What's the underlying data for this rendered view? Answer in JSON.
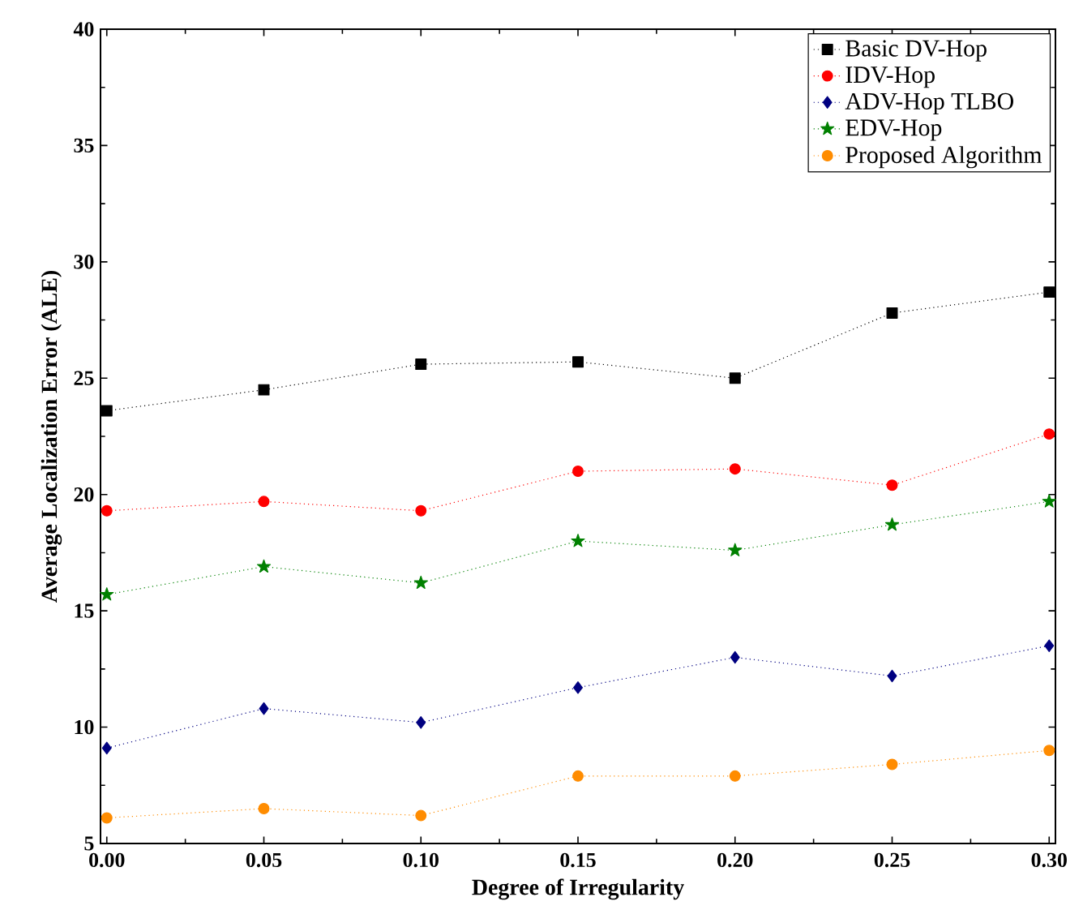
{
  "chart_data": {
    "type": "line",
    "xlabel": "Degree of Irregularity",
    "ylabel": "Average Localization Error (ALE)",
    "x": [
      0,
      0.05,
      0.1,
      0.15,
      0.2,
      0.25,
      0.3
    ],
    "xlim": [
      -0.002,
      0.302
    ],
    "ylim": [
      5,
      40
    ],
    "xticks": [
      {
        "value": 0,
        "label": "0.00"
      },
      0.05,
      {
        "value": 0.1,
        "label": "0.10"
      },
      0.15,
      {
        "value": 0.2,
        "label": "0.20"
      },
      0.25,
      {
        "value": 0.3,
        "label": "0.30"
      }
    ],
    "yticks": [
      5,
      10,
      15,
      20,
      25,
      30,
      35,
      40
    ],
    "legend": "top right",
    "grid": false,
    "line_style": "dotted",
    "series": [
      {
        "name": "Basic DV-Hop",
        "color": "#000000",
        "marker": "square",
        "values": [
          23.6,
          24.5,
          25.6,
          25.7,
          25.0,
          27.8,
          28.7
        ]
      },
      {
        "name": "IDV-Hop",
        "color": "#ff0000",
        "marker": "circle",
        "values": [
          19.3,
          19.7,
          19.3,
          21.0,
          21.1,
          20.4,
          22.6
        ]
      },
      {
        "name": "ADV-Hop TLBO",
        "color": "#000080",
        "marker": "diamond",
        "values": [
          9.1,
          10.8,
          10.2,
          11.7,
          13.0,
          12.2,
          13.5
        ]
      },
      {
        "name": "EDV-Hop",
        "color": "#008000",
        "marker": "star",
        "values": [
          15.7,
          16.9,
          16.2,
          18.0,
          17.6,
          18.7,
          19.7
        ]
      },
      {
        "name": "Proposed Algorithm",
        "color": "#ff8c00",
        "marker": "circle",
        "values": [
          6.1,
          6.5,
          6.2,
          7.9,
          7.9,
          8.4,
          9.0
        ]
      }
    ]
  }
}
